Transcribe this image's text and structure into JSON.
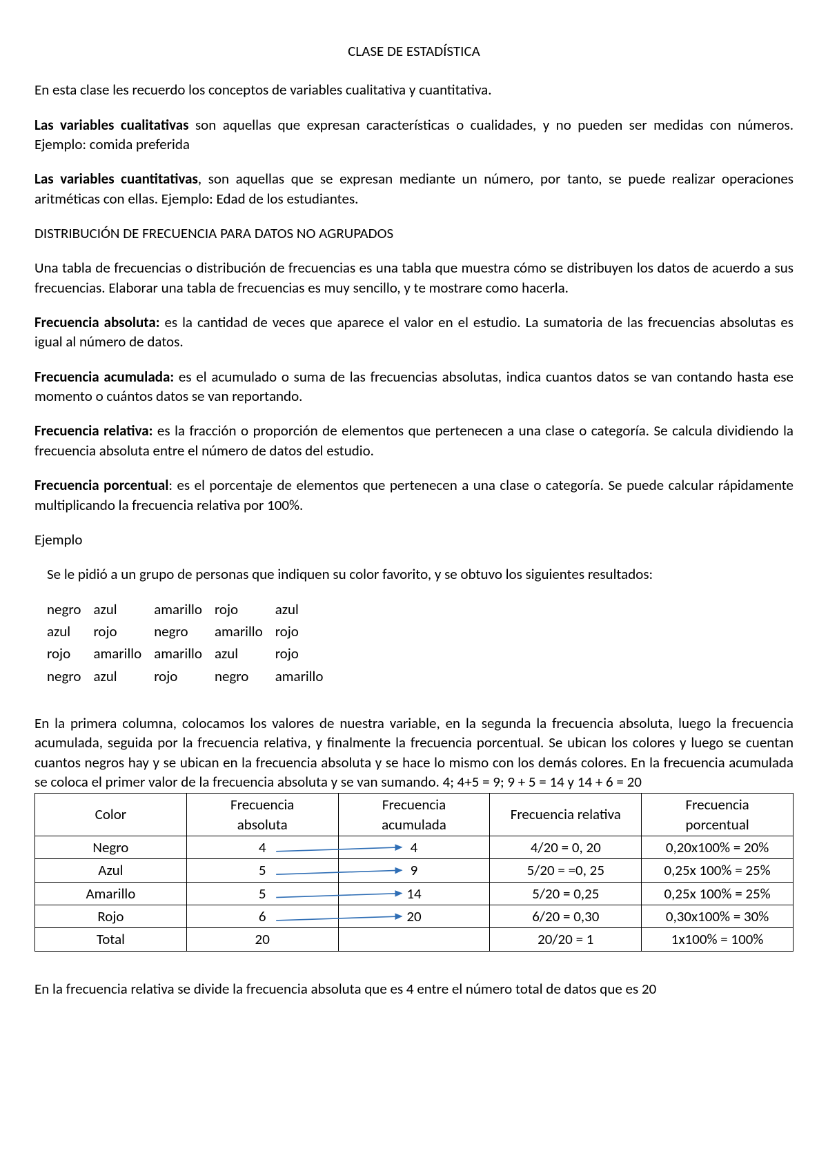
{
  "title": "CLASE DE ESTADÍSTICA",
  "intro": "En esta clase les recuerdo los conceptos de variables cualitativa y cuantitativa.",
  "qual": {
    "label": "Las variables cualitativas",
    "text": " son aquellas que expresan características o cualidades, y no pueden ser medidas con números. Ejemplo:  comida preferida"
  },
  "quant": {
    "label": "Las variables cuantitativas",
    "text": ", son aquellas que se expresan mediante un número, por tanto, se puede realizar operaciones aritméticas con ellas. Ejemplo: Edad de los estudiantes."
  },
  "section_heading": "DISTRIBUCIÓN DE FRECUENCIA PARA DATOS NO AGRUPADOS",
  "freq_table_intro": "Una tabla de frecuencias o distribución de frecuencias es una tabla que muestra cómo se distribuyen los datos de acuerdo a sus frecuencias. Elaborar una tabla de frecuencias es muy sencillo, y te mostrare como hacerla.",
  "defs": {
    "abs": {
      "label": "Frecuencia absoluta:",
      "text": " es la cantidad de veces que aparece el valor en el estudio. La sumatoria de las frecuencias absolutas es igual al número de datos."
    },
    "acum": {
      "label": "Frecuencia acumulada:",
      "text": " es el acumulado o suma de las frecuencias absolutas, indica cuantos datos se van contando hasta ese momento o cuántos datos se van reportando."
    },
    "rel": {
      "label": "Frecuencia relativa:",
      "text": " es la fracción o proporción de elementos que pertenecen a una clase o categoría. Se calcula dividiendo la frecuencia absoluta entre el número de datos del estudio."
    },
    "pct": {
      "label": "Frecuencia porcentual",
      "text": ": es el porcentaje de elementos que pertenecen a una clase o categoría. Se puede calcular rápidamente multiplicando la frecuencia relativa por 100%."
    }
  },
  "example_label": "Ejemplo",
  "example_prompt": "Se le pidió a un grupo de personas que indiquen su color favorito, y se obtuvo los siguientes resultados:",
  "color_data": [
    [
      "negro",
      "azul",
      "amarillo",
      "rojo",
      "azul"
    ],
    [
      "azul",
      "rojo",
      "negro",
      "amarillo",
      "rojo"
    ],
    [
      "rojo",
      "amarillo",
      "amarillo",
      "azul",
      "rojo"
    ],
    [
      "negro",
      "azul",
      "rojo",
      "negro",
      "amarillo"
    ]
  ],
  "explain": "En la primera columna, colocamos los valores de nuestra variable, en la segunda la frecuencia absoluta, luego la frecuencia acumulada, seguida por la frecuencia relativa, y finalmente la frecuencia porcentual. Se ubican los colores y luego se cuentan cuantos negros hay y se ubican en la frecuencia absoluta y se hace lo mismo con los demás colores. En la frecuencia acumulada se coloca el primer valor de la frecuencia absoluta y se van sumando. 4; 4+5 = 9; 9 + 5 = 14 y 14 + 6 = 20",
  "table": {
    "headers": {
      "c0a": "Color",
      "c0b": "",
      "c1a": "Frecuencia",
      "c1b": "absoluta",
      "c2a": "Frecuencia",
      "c2b": "acumulada",
      "c3a": "Frecuencia relativa",
      "c3b": "",
      "c4a": "Frecuencia",
      "c4b": "porcentual"
    },
    "rows": [
      {
        "color": "Negro",
        "abs": "4",
        "acum": "4",
        "rel": "4/20 = 0, 20",
        "pct": "0,20x100% = 20%"
      },
      {
        "color": "Azul",
        "abs": "5",
        "acum": "9",
        "rel": "5/20 = =0, 25",
        "pct": "0,25x 100% = 25%"
      },
      {
        "color": "Amarillo",
        "abs": "5",
        "acum": "14",
        "rel": "5/20 = 0,25",
        "pct": "0,25x 100% = 25%"
      },
      {
        "color": "Rojo",
        "abs": "6",
        "acum": "20",
        "rel": "6/20 = 0,30",
        "pct": "0,30x100% = 30%"
      },
      {
        "color": "Total",
        "abs": "20",
        "acum": "",
        "rel": "20/20 = 1",
        "pct": "1x100% = 100%"
      }
    ],
    "arrow_color": "#2f6eb5",
    "arrow_stroke_width": 1.6
  },
  "footnote": "En la frecuencia relativa se divide la frecuencia absoluta que es 4 entre el número total de datos que es 20"
}
